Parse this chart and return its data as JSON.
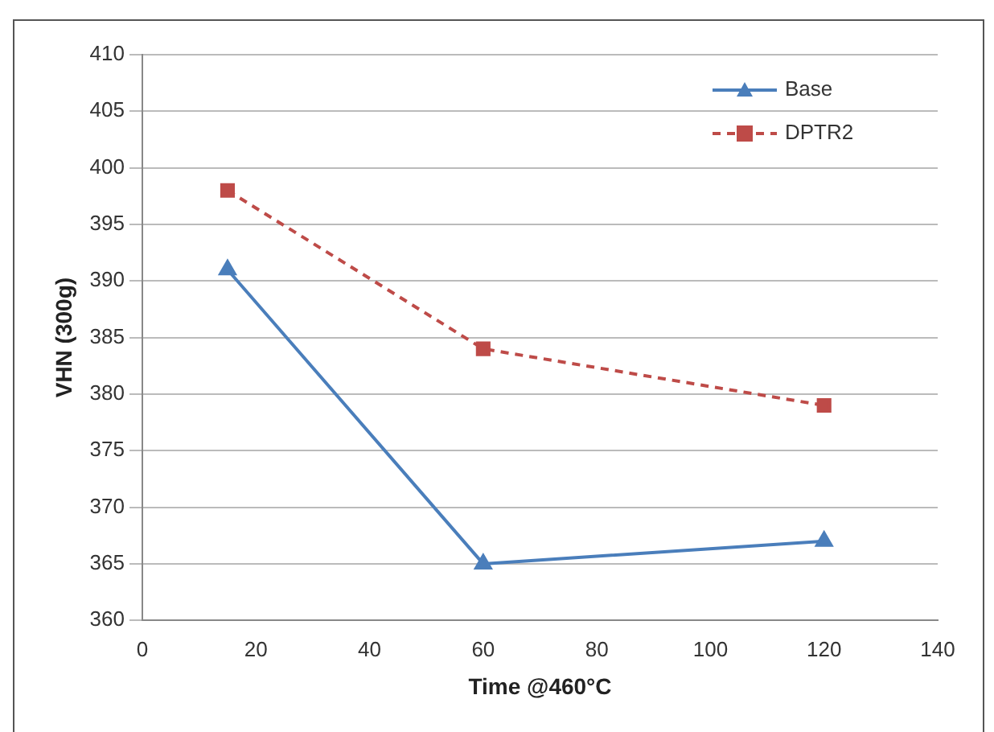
{
  "chart_data": {
    "type": "line",
    "xlabel": "Time @460°C",
    "ylabel": "VHN (300g)",
    "x": [
      15,
      60,
      120
    ],
    "series": [
      {
        "name": "Base",
        "color": "#4a7ebb",
        "values": [
          391,
          365,
          367
        ],
        "marker": "triangle",
        "line_style": "solid"
      },
      {
        "name": "DPTR2",
        "color": "#be4b48",
        "values": [
          398,
          384,
          379
        ],
        "marker": "square",
        "line_style": "dashed"
      }
    ],
    "xlim": [
      0,
      140
    ],
    "xticks": [
      0,
      20,
      40,
      60,
      80,
      100,
      120,
      140
    ],
    "ylim": [
      360,
      410
    ],
    "yticks": [
      360,
      365,
      370,
      375,
      380,
      385,
      390,
      395,
      400,
      405,
      410
    ],
    "grid": "y",
    "legend": "top right"
  }
}
